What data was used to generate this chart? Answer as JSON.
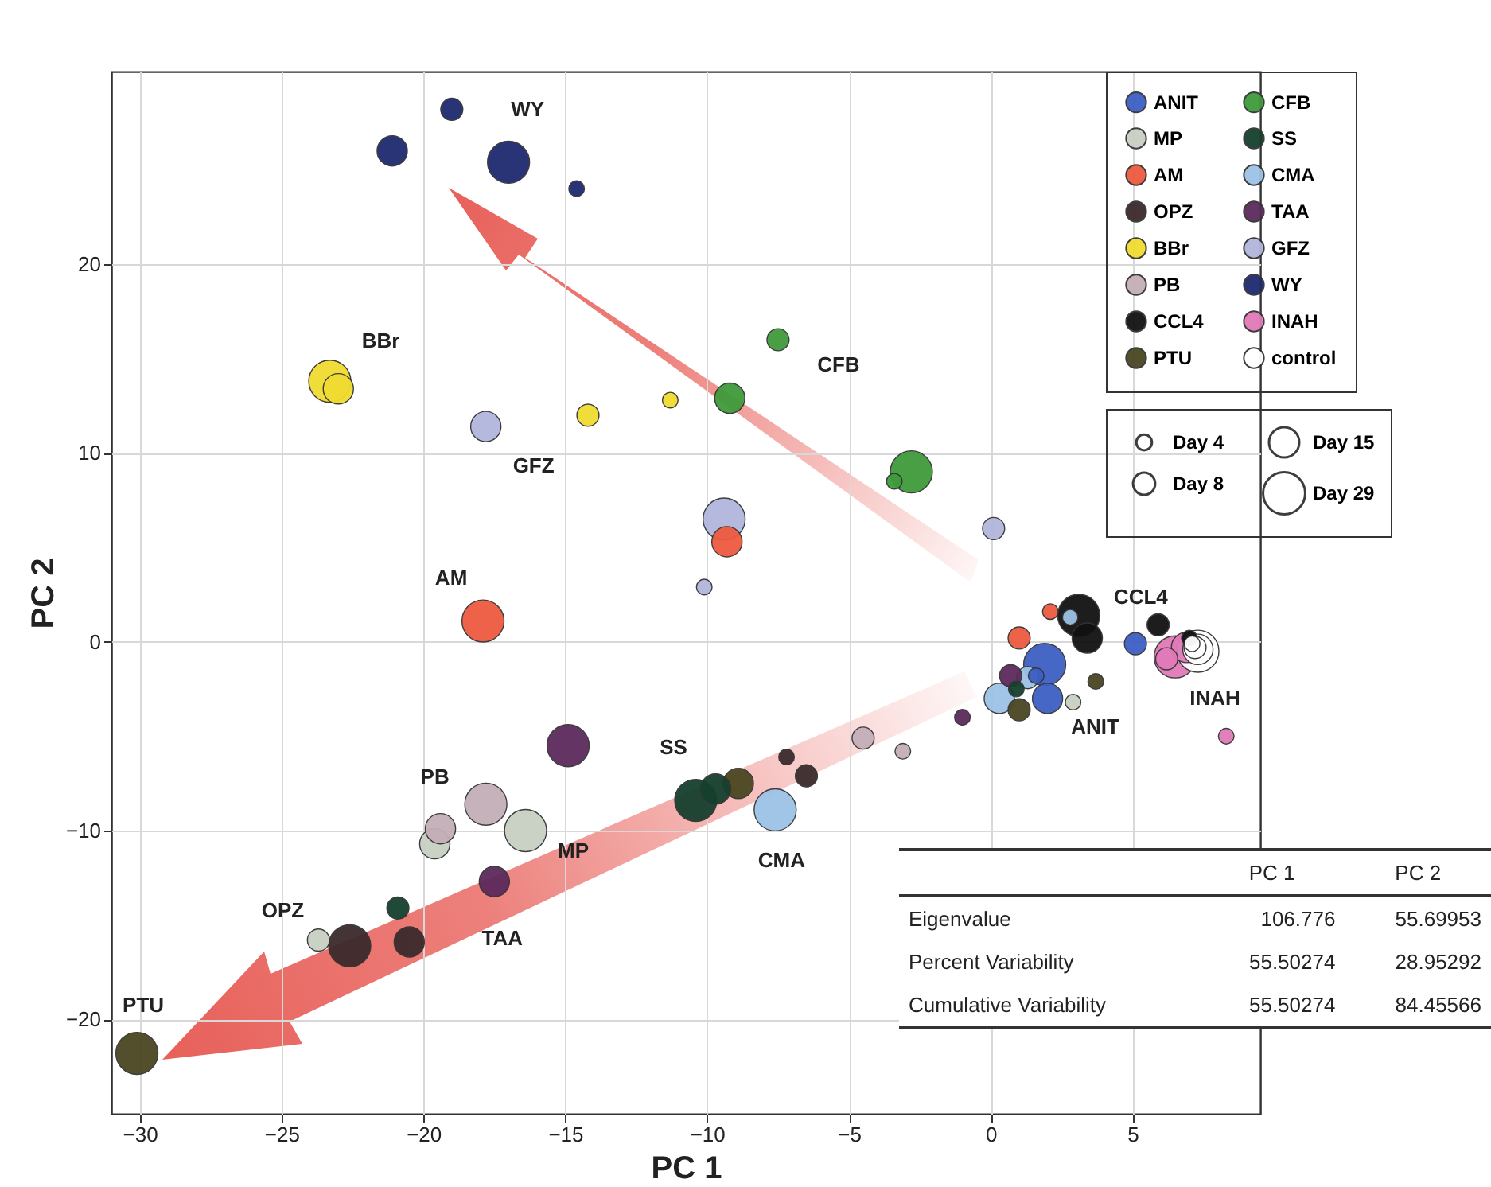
{
  "chart_data": {
    "type": "bubble",
    "xlabel": "PC 1",
    "ylabel": "PC 2",
    "xlim": [
      -31,
      9.5
    ],
    "ylim": [
      -25,
      30.2
    ],
    "xticks": [
      -30,
      -25,
      -20,
      -15,
      -10,
      -5,
      0,
      5
    ],
    "yticks": [
      -20,
      -10,
      0,
      10,
      20
    ],
    "grid": true,
    "legend": "top right",
    "marker": "circle",
    "size_legend": [
      {
        "value": 4,
        "label": "Day 4"
      },
      {
        "value": 8,
        "label": "Day 8"
      },
      {
        "value": 15,
        "label": "Day 15"
      },
      {
        "value": 29,
        "label": "Day 29"
      }
    ],
    "series": [
      {
        "name": "ANIT",
        "color": "#3d5fc4",
        "x": [
          1.6,
          5.1,
          2.0,
          1.9
        ],
        "values": [
          -1.8,
          -0.1,
          -3.0,
          -1.2
        ],
        "sizes": [
          4,
          8,
          15,
          29
        ]
      },
      {
        "name": "AM",
        "color": "#ee5a40",
        "x": [
          2.1,
          1.0,
          -9.3,
          -17.9
        ],
        "values": [
          1.6,
          0.2,
          5.3,
          1.1
        ],
        "sizes": [
          4,
          8,
          15,
          29
        ]
      },
      {
        "name": "BBr",
        "color": "#f0dc30",
        "x": [
          -11.3,
          -14.2,
          -23.0,
          -23.3
        ],
        "values": [
          12.8,
          12.0,
          13.4,
          13.8
        ],
        "sizes": [
          4,
          8,
          15,
          29
        ]
      },
      {
        "name": "CCL4",
        "color": "#111111",
        "x": [
          7.0,
          5.9,
          3.4,
          3.1
        ],
        "values": [
          0.2,
          0.9,
          0.2,
          1.4
        ],
        "sizes": [
          4,
          8,
          15,
          29
        ]
      },
      {
        "name": "CFB",
        "color": "#3f9a3a",
        "x": [
          -3.4,
          -7.5,
          -9.2,
          -2.8
        ],
        "values": [
          8.5,
          16.0,
          12.9,
          9.0
        ],
        "sizes": [
          4,
          8,
          15,
          29
        ]
      },
      {
        "name": "CMA",
        "color": "#9cc2e6",
        "x": [
          2.8,
          1.3,
          0.3,
          -7.6
        ],
        "values": [
          1.3,
          -1.9,
          -3.0,
          -8.9
        ],
        "sizes": [
          4,
          8,
          15,
          29
        ]
      },
      {
        "name": "GFZ",
        "color": "#b0b6dc",
        "x": [
          -10.1,
          0.1,
          -17.8,
          -9.4
        ],
        "values": [
          2.9,
          6.0,
          11.4,
          6.5
        ],
        "sizes": [
          4,
          8,
          15,
          29
        ]
      },
      {
        "name": "INAH",
        "color": "#e07ab8",
        "x": [
          8.3,
          6.2,
          6.9,
          6.5
        ],
        "values": [
          -5.0,
          -0.9,
          -0.3,
          -0.8
        ],
        "sizes": [
          4,
          8,
          15,
          29
        ]
      },
      {
        "name": "MP",
        "color": "#c8d0c4",
        "x": [
          2.9,
          -23.7,
          -19.6,
          -16.4
        ],
        "values": [
          -3.2,
          -15.8,
          -10.7,
          -10.0
        ],
        "sizes": [
          4,
          8,
          15,
          29
        ]
      },
      {
        "name": "OPZ",
        "color": "#3c2a2c",
        "x": [
          -7.2,
          -6.5,
          -20.5,
          -22.6
        ],
        "values": [
          -6.1,
          -7.1,
          -15.9,
          -16.1
        ],
        "sizes": [
          4,
          8,
          15,
          29
        ]
      },
      {
        "name": "PB",
        "color": "#c4aeb8",
        "x": [
          -3.1,
          -4.5,
          -19.4,
          -17.8
        ],
        "values": [
          -5.8,
          -5.1,
          -9.9,
          -8.6
        ],
        "sizes": [
          4,
          8,
          15,
          29
        ]
      },
      {
        "name": "PTU",
        "color": "#4a4622",
        "x": [
          3.7,
          1.0,
          -8.9,
          -30.1
        ],
        "values": [
          -2.1,
          -3.6,
          -7.5,
          -21.8
        ],
        "sizes": [
          4,
          8,
          15,
          29
        ]
      },
      {
        "name": "SS",
        "color": "#16402e",
        "x": [
          0.9,
          -20.9,
          -9.7,
          -10.4
        ],
        "values": [
          -2.5,
          -14.1,
          -7.8,
          -8.4
        ],
        "sizes": [
          4,
          8,
          15,
          29
        ]
      },
      {
        "name": "TAA",
        "color": "#5c2a5c",
        "x": [
          -1.0,
          0.7,
          -17.5,
          -14.9
        ],
        "values": [
          -4.0,
          -1.8,
          -12.7,
          -5.5
        ],
        "sizes": [
          4,
          8,
          15,
          29
        ]
      },
      {
        "name": "WY",
        "color": "#1e2a70",
        "x": [
          -14.6,
          -19.0,
          -21.1,
          -17.0
        ],
        "values": [
          24.0,
          28.2,
          26.0,
          25.4
        ],
        "sizes": [
          4,
          8,
          15,
          29
        ]
      },
      {
        "name": "control",
        "color": "#ffffff",
        "x": [
          7.1,
          7.2,
          7.3,
          7.3
        ],
        "values": [
          -0.1,
          -0.3,
          -0.4,
          -0.5
        ],
        "sizes": [
          4,
          8,
          15,
          29
        ]
      }
    ],
    "annotations": [
      {
        "text": "WY",
        "x": -17.0,
        "y": 25.4
      },
      {
        "text": "BBr",
        "x": -23.3,
        "y": 13.8
      },
      {
        "text": "GFZ",
        "x": -17.8,
        "y": 11.4
      },
      {
        "text": "CFB",
        "x": -7.5,
        "y": 16.0
      },
      {
        "text": "AM",
        "x": -17.9,
        "y": 1.1
      },
      {
        "text": "PB",
        "x": -17.8,
        "y": -8.6
      },
      {
        "text": "MP",
        "x": -16.4,
        "y": -10.0
      },
      {
        "text": "TAA",
        "x": -17.5,
        "y": -12.7
      },
      {
        "text": "OPZ",
        "x": -22.6,
        "y": -16.1
      },
      {
        "text": "PTU",
        "x": -30.1,
        "y": -21.8
      },
      {
        "text": "SS",
        "x": -10.4,
        "y": -8.4
      },
      {
        "text": "CMA",
        "x": -7.6,
        "y": -8.9
      },
      {
        "text": "CCL4",
        "x": 3.1,
        "y": 1.4
      },
      {
        "text": "ANIT",
        "x": 2.0,
        "y": -3.0
      },
      {
        "text": "INAH",
        "x": 6.5,
        "y": -0.8
      },
      "PC 1",
      "PC 2",
      "Eigenvalue",
      "106.776",
      "55.69953",
      "Percent Variability",
      "55.50274",
      "28.95292",
      "Cumulative Variability",
      "55.50274",
      "84.45566"
    ]
  }
}
